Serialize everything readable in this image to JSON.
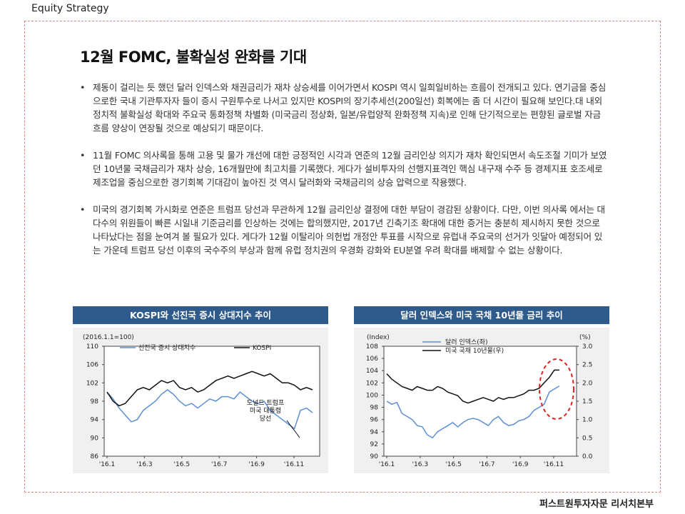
{
  "header": {
    "section": "Equity Strategy"
  },
  "title": "12월 FOMC, 불확실성 완화를 기대",
  "bullets": [
    "제동이 걸리는 듯 했던 달러 인덱스와 채권금리가 재차 상승세를 이어가면서 KOSPI 역시 일희일비하는 흐름이 전개되고 있다. 연기금을 중심으로한 국내 기관투자자 들이 증시 구원투수로 나서고 있지만 KOSPI의 장기추세선(200일선) 회복에는 좀 더 시간이 필요해 보인다.대 내외 정치적 불확실성 확대와 주요국 통화정책 차별화 (미국금리 정상화, 일본/유럽양적 완화정책 지속)로 인해 단기적으로는 편향된 글로벌 자금흐름 양상이 연장될 것으로 예상되기 때문이다.",
    "11월 FOMC 의사록을 통해 고용 및 물가 개선에 대한 긍정적인 시각과 연준의 12월 금리인상 의지가 재차 확인되면서 속도조절 기미가 보였던 10년물 국채금리가 재차 상승, 16개월만에 최고치를 기록했다. 게다가 설비투자의 선행지표격인 핵심 내구재 수주 등 경제지표 호조세로 제조업을 중심으로한 경기회복 기대감이 높아진 것 역시 달러화와 국채금리의 상승 압력으로 작용했다.",
    "미국의 경기회복 가시화로 연준은 트럼프 당선과 무관하게 12월 금리인상 결정에 대한 부담이 경감된 상황이다. 다만, 이번 의사록 에서는 대다수의 위원들이 빠른 시일내 기준금리를 인상하는 것에는 합의했지만, 2017년 긴축기조 확대에 대한 증거는 충분히 제시하지 못한 것으로 나타났다는 점을 눈여겨 볼 필요가 있다. 게다가 12월 이탈리아 의헌법 개정안 투표를 시작으로 유럽내 주요국의 선거가 잇달아 예정되어 있는 가운데 트럼프 당선 이후의 국수주의 부상과 함께 유럽 정치권의 우경화 강화와 EU분열 우려 확대를 배제할 수 없는 상황이다."
  ],
  "footer": {
    "brand": "퍼스트원투자자문 리서치본부"
  },
  "chart_data": [
    {
      "type": "line",
      "title": "KOSPI와 선진국 증시 상대지수 추이",
      "note": "(2016.1.1=100)",
      "x_ticks": [
        "'16.1",
        "'16.3",
        "'16.5",
        "'16.7",
        "'16.9",
        "'16.11"
      ],
      "ylim": [
        86,
        110
      ],
      "y_ticks": [
        86,
        90,
        94,
        98,
        102,
        106,
        110
      ],
      "annotation": [
        "도널드 트럼프",
        "미국 대통령",
        "당선"
      ],
      "series": [
        {
          "name": "선진국 증시 상대지수",
          "color": "#5b8fd6",
          "values": [
            100,
            98.5,
            96.5,
            95,
            93.5,
            94,
            96,
            97,
            98,
            99.5,
            100.5,
            99.5,
            98,
            97,
            97.5,
            96.5,
            97.5,
            98.5,
            98,
            99,
            99,
            98.5,
            100,
            99,
            98,
            97.5,
            98,
            96,
            95,
            94,
            93,
            92,
            96,
            96.5,
            95.5
          ]
        },
        {
          "name": "KOSPI",
          "color": "#111111",
          "values": [
            100,
            98,
            97,
            97.5,
            99,
            100.5,
            101,
            100.5,
            101.5,
            102.5,
            102,
            102.5,
            101,
            100.5,
            101,
            100,
            100.5,
            101.5,
            102.5,
            103,
            103.5,
            103,
            103.5,
            104,
            104.5,
            104,
            103.5,
            104,
            103,
            102,
            102,
            101.5,
            100.5,
            101,
            100.5
          ]
        }
      ]
    },
    {
      "type": "line",
      "title": "달러 인덱스와 미국 국채 10년물 금리 추이",
      "y_left_label": "(Index)",
      "y_right_label": "(%)",
      "x_ticks": [
        "'16.1",
        "'16.3",
        "'16.5",
        "'16.7",
        "'16.9",
        "'16.11"
      ],
      "ylim_left": [
        90,
        108
      ],
      "y_ticks_left": [
        90,
        92,
        94,
        96,
        98,
        100,
        102,
        104,
        106,
        108
      ],
      "ylim_right": [
        0.0,
        3.0
      ],
      "y_ticks_right": [
        "0.0",
        "0.5",
        "1.0",
        "1.5",
        "2.0",
        "2.5",
        "3.0"
      ],
      "series": [
        {
          "name": "달러 인덱스(좌)",
          "color": "#5b8fd6",
          "axis": "left",
          "values": [
            99,
            98.5,
            98.8,
            97,
            96.5,
            96,
            95,
            94.8,
            93.5,
            93,
            94,
            94.5,
            95,
            95.5,
            94.8,
            95.5,
            96,
            96.2,
            96,
            95.5,
            95,
            96,
            96.5,
            95.5,
            95,
            95.2,
            95.8,
            96,
            96.5,
            97.5,
            98,
            98.5,
            100.5,
            101,
            101.5
          ]
        },
        {
          "name": "미국 국채 10년물(우)",
          "color": "#111111",
          "axis": "right",
          "values": [
            2.25,
            2.1,
            2.0,
            1.9,
            1.85,
            1.8,
            1.9,
            1.85,
            1.8,
            1.8,
            1.9,
            1.85,
            1.75,
            1.7,
            1.65,
            1.5,
            1.45,
            1.5,
            1.55,
            1.6,
            1.55,
            1.5,
            1.6,
            1.55,
            1.6,
            1.6,
            1.65,
            1.7,
            1.8,
            1.8,
            1.85,
            2.0,
            2.15,
            2.35,
            2.35
          ]
        }
      ],
      "highlight": "red dashed ellipse around late-2016 rise"
    }
  ]
}
